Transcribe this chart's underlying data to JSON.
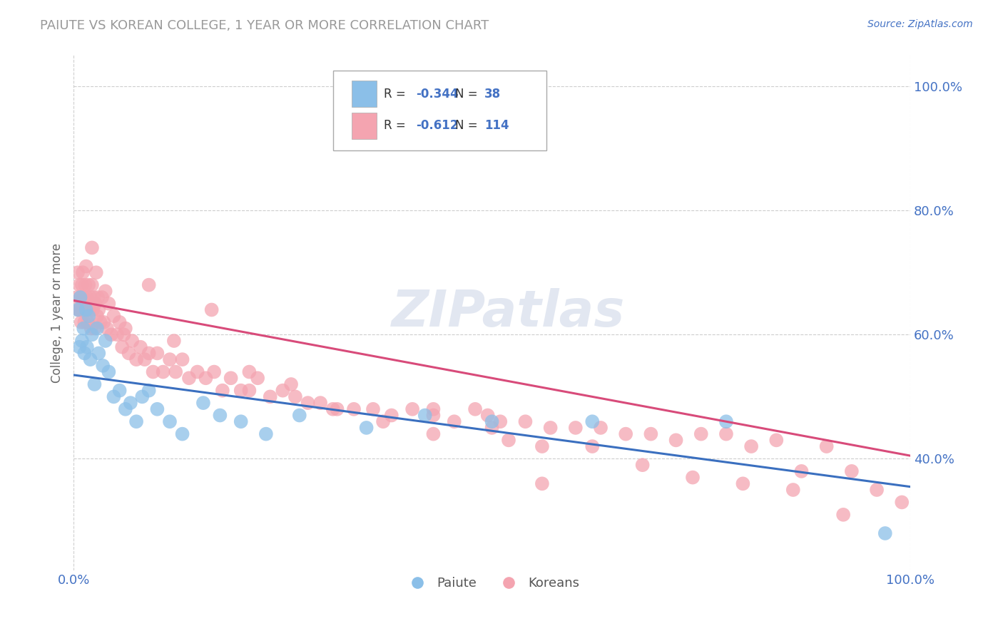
{
  "title": "PAIUTE VS KOREAN COLLEGE, 1 YEAR OR MORE CORRELATION CHART",
  "source_text": "Source: ZipAtlas.com",
  "ylabel": "College, 1 year or more",
  "xlim": [
    0.0,
    1.0
  ],
  "ylim": [
    0.22,
    1.05
  ],
  "x_tick_labels": [
    "0.0%",
    "100.0%"
  ],
  "x_tick_positions": [
    0.0,
    1.0
  ],
  "y_tick_labels": [
    "40.0%",
    "60.0%",
    "80.0%",
    "100.0%"
  ],
  "y_tick_positions": [
    0.4,
    0.6,
    0.8,
    1.0
  ],
  "legend_labels": [
    "Paiute",
    "Koreans"
  ],
  "paiute_color": "#8bbfe8",
  "korean_color": "#f4a4b0",
  "paiute_line_color": "#3a6fbf",
  "korean_line_color": "#d84b7a",
  "r_paiute": -0.344,
  "n_paiute": 38,
  "r_korean": -0.612,
  "n_korean": 114,
  "watermark_text": "ZIPatlas",
  "background_color": "#ffffff",
  "grid_color": "#c8c8c8",
  "title_color": "#888888",
  "tick_color": "#4472c4",
  "source_color": "#4472c4",
  "paiute_line_start_y": 0.535,
  "paiute_line_end_y": 0.355,
  "korean_line_start_y": 0.655,
  "korean_line_end_y": 0.405,
  "paiute_x": [
    0.005,
    0.007,
    0.008,
    0.01,
    0.012,
    0.013,
    0.015,
    0.016,
    0.018,
    0.02,
    0.022,
    0.025,
    0.028,
    0.03,
    0.035,
    0.038,
    0.042,
    0.048,
    0.055,
    0.062,
    0.068,
    0.075,
    0.082,
    0.09,
    0.1,
    0.115,
    0.13,
    0.155,
    0.175,
    0.2,
    0.23,
    0.27,
    0.35,
    0.42,
    0.5,
    0.62,
    0.78,
    0.97
  ],
  "paiute_y": [
    0.64,
    0.58,
    0.66,
    0.59,
    0.61,
    0.57,
    0.64,
    0.58,
    0.63,
    0.56,
    0.6,
    0.52,
    0.61,
    0.57,
    0.55,
    0.59,
    0.54,
    0.5,
    0.51,
    0.48,
    0.49,
    0.46,
    0.5,
    0.51,
    0.48,
    0.46,
    0.44,
    0.49,
    0.47,
    0.46,
    0.44,
    0.47,
    0.45,
    0.47,
    0.46,
    0.46,
    0.46,
    0.28
  ],
  "korean_x": [
    0.004,
    0.005,
    0.006,
    0.007,
    0.007,
    0.008,
    0.009,
    0.01,
    0.01,
    0.011,
    0.012,
    0.013,
    0.014,
    0.015,
    0.015,
    0.016,
    0.017,
    0.018,
    0.019,
    0.02,
    0.021,
    0.022,
    0.023,
    0.024,
    0.025,
    0.026,
    0.027,
    0.028,
    0.029,
    0.03,
    0.032,
    0.034,
    0.036,
    0.038,
    0.04,
    0.042,
    0.045,
    0.048,
    0.052,
    0.055,
    0.058,
    0.062,
    0.066,
    0.07,
    0.075,
    0.08,
    0.085,
    0.09,
    0.095,
    0.1,
    0.107,
    0.115,
    0.122,
    0.13,
    0.138,
    0.148,
    0.158,
    0.168,
    0.178,
    0.188,
    0.2,
    0.21,
    0.22,
    0.235,
    0.25,
    0.265,
    0.28,
    0.295,
    0.315,
    0.335,
    0.358,
    0.38,
    0.405,
    0.43,
    0.455,
    0.48,
    0.51,
    0.54,
    0.57,
    0.6,
    0.63,
    0.66,
    0.69,
    0.72,
    0.75,
    0.78,
    0.81,
    0.84,
    0.87,
    0.9,
    0.93,
    0.96,
    0.99,
    0.022,
    0.06,
    0.09,
    0.12,
    0.165,
    0.21,
    0.26,
    0.31,
    0.37,
    0.43,
    0.5,
    0.56,
    0.43,
    0.495,
    0.52,
    0.56,
    0.62,
    0.68,
    0.74,
    0.8,
    0.86,
    0.92
  ],
  "korean_y": [
    0.66,
    0.7,
    0.64,
    0.68,
    0.64,
    0.66,
    0.62,
    0.68,
    0.64,
    0.7,
    0.66,
    0.62,
    0.68,
    0.64,
    0.71,
    0.66,
    0.62,
    0.68,
    0.64,
    0.66,
    0.61,
    0.68,
    0.64,
    0.66,
    0.61,
    0.65,
    0.7,
    0.63,
    0.66,
    0.64,
    0.62,
    0.66,
    0.62,
    0.67,
    0.61,
    0.65,
    0.6,
    0.63,
    0.6,
    0.62,
    0.58,
    0.61,
    0.57,
    0.59,
    0.56,
    0.58,
    0.56,
    0.57,
    0.54,
    0.57,
    0.54,
    0.56,
    0.54,
    0.56,
    0.53,
    0.54,
    0.53,
    0.54,
    0.51,
    0.53,
    0.51,
    0.51,
    0.53,
    0.5,
    0.51,
    0.5,
    0.49,
    0.49,
    0.48,
    0.48,
    0.48,
    0.47,
    0.48,
    0.47,
    0.46,
    0.48,
    0.46,
    0.46,
    0.45,
    0.45,
    0.45,
    0.44,
    0.44,
    0.43,
    0.44,
    0.44,
    0.42,
    0.43,
    0.38,
    0.42,
    0.38,
    0.35,
    0.33,
    0.74,
    0.6,
    0.68,
    0.59,
    0.64,
    0.54,
    0.52,
    0.48,
    0.46,
    0.44,
    0.45,
    0.36,
    0.48,
    0.47,
    0.43,
    0.42,
    0.42,
    0.39,
    0.37,
    0.36,
    0.35,
    0.31
  ]
}
